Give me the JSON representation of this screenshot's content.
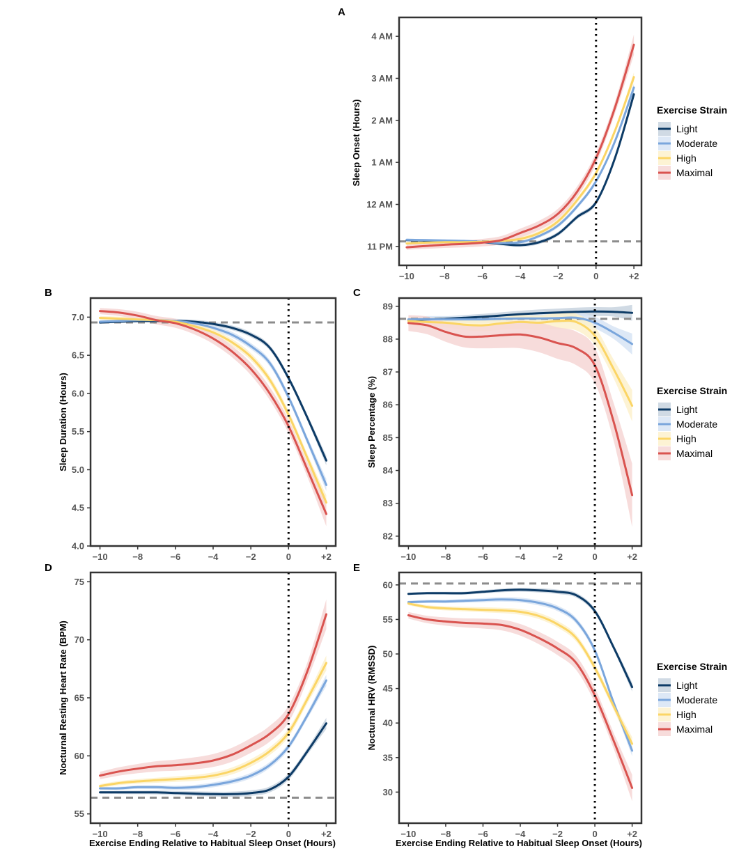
{
  "colors": {
    "Light": "#0d3b66",
    "Moderate": "#7aa6dc",
    "High": "#fbd565",
    "Maximal": "#d9534f",
    "band_Light": "#c8d3df",
    "band_Moderate": "#d7e4f4",
    "band_High": "#fdf1cc",
    "band_Maximal": "#f6d6d5",
    "reference": "#8c8c8c",
    "zero_line": "#000000"
  },
  "legend": {
    "title": "Exercise Strain",
    "items": [
      "Light",
      "Moderate",
      "High",
      "Maximal"
    ]
  },
  "chart_data": [
    {
      "panel": "A",
      "type": "line",
      "xlabel": "",
      "ylabel": "Sleep Onset (Hours)",
      "xlim": [
        -10.4,
        2.4
      ],
      "ylim": [
        -1.45,
        4.45
      ],
      "xticks": [
        -10,
        -8,
        -6,
        -4,
        -2,
        0,
        2
      ],
      "xtick_labels": [
        "−10",
        "−8",
        "−6",
        "−4",
        "−2",
        "0",
        "+2"
      ],
      "yticks": [
        -1,
        0,
        1,
        2,
        3,
        4
      ],
      "ytick_labels": [
        "11 PM",
        "12 AM",
        "1 AM",
        "2 AM",
        "3 AM",
        "4 AM"
      ],
      "reference_y": -0.88,
      "x": [
        -10,
        -9,
        -8,
        -7,
        -6,
        -5,
        -4,
        -3,
        -2,
        -1,
        0,
        1,
        2
      ],
      "series": [
        {
          "name": "Light",
          "values": [
            -0.85,
            -0.86,
            -0.87,
            -0.88,
            -0.9,
            -0.94,
            -0.97,
            -0.9,
            -0.7,
            -0.3,
            0.05,
            1.1,
            2.62
          ],
          "band": 0.06
        },
        {
          "name": "Moderate",
          "values": [
            -0.84,
            -0.85,
            -0.86,
            -0.87,
            -0.89,
            -0.92,
            -0.9,
            -0.75,
            -0.5,
            -0.05,
            0.55,
            1.5,
            2.78
          ],
          "band": 0.06
        },
        {
          "name": "High",
          "values": [
            -0.93,
            -0.91,
            -0.9,
            -0.9,
            -0.89,
            -0.87,
            -0.82,
            -0.68,
            -0.4,
            0.1,
            0.75,
            1.75,
            3.03
          ],
          "band": 0.07
        },
        {
          "name": "Maximal",
          "values": [
            -1.02,
            -0.99,
            -0.96,
            -0.94,
            -0.91,
            -0.85,
            -0.68,
            -0.5,
            -0.22,
            0.3,
            1.1,
            2.3,
            3.8
          ],
          "band": 0.15
        }
      ]
    },
    {
      "panel": "B",
      "type": "line",
      "xlabel": "",
      "ylabel": "Sleep Duration (Hours)",
      "xlim": [
        -10.5,
        2.5
      ],
      "ylim": [
        4.0,
        7.25
      ],
      "xticks": [
        -10,
        -8,
        -6,
        -4,
        -2,
        0,
        2
      ],
      "xtick_labels": [
        "−10",
        "−8",
        "−6",
        "−4",
        "−2",
        "0",
        "+2"
      ],
      "yticks": [
        4.0,
        4.5,
        5.0,
        5.5,
        6.0,
        6.5,
        7.0
      ],
      "ytick_labels": [
        "4.0",
        "4.5",
        "5.0",
        "5.5",
        "6.0",
        "6.5",
        "7.0"
      ],
      "reference_y": 6.93,
      "x": [
        -10,
        -9,
        -8,
        -7,
        -6,
        -5,
        -4,
        -3,
        -2,
        -1,
        0,
        1,
        2
      ],
      "series": [
        {
          "name": "Light",
          "values": [
            6.93,
            6.94,
            6.95,
            6.95,
            6.95,
            6.94,
            6.91,
            6.86,
            6.77,
            6.6,
            6.2,
            5.68,
            5.12
          ],
          "band": 0.04
        },
        {
          "name": "Moderate",
          "values": [
            6.94,
            6.95,
            6.96,
            6.96,
            6.95,
            6.92,
            6.86,
            6.77,
            6.62,
            6.4,
            5.95,
            5.38,
            4.8
          ],
          "band": 0.05
        },
        {
          "name": "High",
          "values": [
            6.99,
            6.98,
            6.97,
            6.96,
            6.94,
            6.88,
            6.8,
            6.67,
            6.48,
            6.18,
            5.72,
            5.15,
            4.57
          ],
          "band": 0.06
        },
        {
          "name": "Maximal",
          "values": [
            7.08,
            7.06,
            7.02,
            6.96,
            6.92,
            6.84,
            6.72,
            6.55,
            6.32,
            6.0,
            5.57,
            5.0,
            4.42
          ],
          "band": 0.1
        }
      ]
    },
    {
      "panel": "C",
      "type": "line",
      "xlabel": "",
      "ylabel": "Sleep Percentage (%)",
      "xlim": [
        -10.5,
        2.5
      ],
      "ylim": [
        81.7,
        89.25
      ],
      "xticks": [
        -10,
        -8,
        -6,
        -4,
        -2,
        0,
        2
      ],
      "xtick_labels": [
        "−10",
        "−8",
        "−6",
        "−4",
        "−2",
        "0",
        "+2"
      ],
      "yticks": [
        82,
        83,
        84,
        85,
        86,
        87,
        88,
        89
      ],
      "ytick_labels": [
        "82",
        "83",
        "84",
        "85",
        "86",
        "87",
        "88",
        "89"
      ],
      "reference_y": 88.62,
      "x": [
        -10,
        -9,
        -8,
        -7,
        -6,
        -5,
        -4,
        -3,
        -2,
        -1,
        0,
        1,
        2
      ],
      "series": [
        {
          "name": "Light",
          "values": [
            88.58,
            88.6,
            88.62,
            88.65,
            88.68,
            88.72,
            88.76,
            88.79,
            88.81,
            88.83,
            88.84,
            88.83,
            88.8
          ],
          "band": 0.15
        },
        {
          "name": "Moderate",
          "values": [
            88.6,
            88.61,
            88.6,
            88.6,
            88.6,
            88.62,
            88.63,
            88.63,
            88.64,
            88.65,
            88.5,
            88.2,
            87.85
          ],
          "band": 0.2
        },
        {
          "name": "High",
          "values": [
            88.55,
            88.52,
            88.5,
            88.44,
            88.42,
            88.48,
            88.52,
            88.5,
            88.55,
            88.52,
            88.1,
            87.1,
            85.97
          ],
          "band": 0.3
        },
        {
          "name": "Maximal",
          "values": [
            88.49,
            88.42,
            88.22,
            88.08,
            88.08,
            88.12,
            88.14,
            88.05,
            87.88,
            87.72,
            87.2,
            85.5,
            83.25
          ],
          "band": 0.6
        }
      ]
    },
    {
      "panel": "D",
      "type": "line",
      "xlabel": "Exercise Ending Relative to Habitual Sleep Onset (Hours)",
      "ylabel": "Nocturnal Resting Heart Rate (BPM)",
      "xlim": [
        -10.5,
        2.5
      ],
      "ylim": [
        54.2,
        75.8
      ],
      "xticks": [
        -10,
        -8,
        -6,
        -4,
        -2,
        0,
        2
      ],
      "xtick_labels": [
        "−10",
        "−8",
        "−6",
        "−4",
        "−2",
        "0",
        "+2"
      ],
      "yticks": [
        55,
        60,
        65,
        70,
        75
      ],
      "ytick_labels": [
        "55",
        "60",
        "65",
        "70",
        "75"
      ],
      "reference_y": 56.4,
      "x": [
        -10,
        -9,
        -8,
        -7,
        -6,
        -5,
        -4,
        -3,
        -2,
        -1,
        0,
        1,
        2
      ],
      "series": [
        {
          "name": "Light",
          "values": [
            56.85,
            56.85,
            56.85,
            56.85,
            56.8,
            56.75,
            56.7,
            56.7,
            56.8,
            57.1,
            58.2,
            60.4,
            62.8
          ],
          "band": 0.3
        },
        {
          "name": "Moderate",
          "values": [
            57.2,
            57.2,
            57.3,
            57.3,
            57.25,
            57.3,
            57.5,
            57.8,
            58.3,
            59.2,
            60.8,
            63.5,
            66.5
          ],
          "band": 0.3
        },
        {
          "name": "High",
          "values": [
            57.4,
            57.65,
            57.8,
            57.9,
            58.0,
            58.1,
            58.3,
            58.7,
            59.4,
            60.4,
            62.0,
            64.9,
            68.0
          ],
          "band": 0.4
        },
        {
          "name": "Maximal",
          "values": [
            58.3,
            58.65,
            58.9,
            59.1,
            59.2,
            59.35,
            59.6,
            60.1,
            60.9,
            61.9,
            63.6,
            67.3,
            72.2
          ],
          "band": 0.8
        }
      ]
    },
    {
      "panel": "E",
      "type": "line",
      "xlabel": "Exercise Ending Relative to Habitual Sleep Onset (Hours)",
      "ylabel": "Nocturnal HRV (RMSSD)",
      "xlim": [
        -10.5,
        2.5
      ],
      "ylim": [
        25.5,
        61.8
      ],
      "xticks": [
        -10,
        -8,
        -6,
        -4,
        -2,
        0,
        2
      ],
      "xtick_labels": [
        "−10",
        "−8",
        "−6",
        "−4",
        "−2",
        "0",
        "+2"
      ],
      "yticks": [
        30,
        35,
        40,
        45,
        50,
        55,
        60
      ],
      "ytick_labels": [
        "30",
        "35",
        "40",
        "45",
        "50",
        "55",
        "60"
      ],
      "reference_y": 60.2,
      "x": [
        -10,
        -9,
        -8,
        -7,
        -6,
        -5,
        -4,
        -3,
        -2,
        -1,
        0,
        1,
        2
      ],
      "series": [
        {
          "name": "Light",
          "values": [
            58.7,
            58.8,
            58.8,
            58.8,
            59.0,
            59.2,
            59.3,
            59.2,
            59.0,
            58.5,
            56.2,
            51.0,
            45.2
          ],
          "band": 0.4
        },
        {
          "name": "Moderate",
          "values": [
            57.5,
            57.6,
            57.6,
            57.7,
            57.8,
            57.9,
            57.8,
            57.4,
            56.6,
            54.8,
            50.5,
            43.0,
            36.0
          ],
          "band": 0.5
        },
        {
          "name": "High",
          "values": [
            57.3,
            56.8,
            56.6,
            56.5,
            56.4,
            56.3,
            56.1,
            55.5,
            54.3,
            52.3,
            48.0,
            42.5,
            37.0
          ],
          "band": 0.6
        },
        {
          "name": "Maximal",
          "values": [
            55.6,
            55.0,
            54.7,
            54.5,
            54.4,
            54.2,
            53.5,
            52.3,
            50.8,
            48.7,
            44.0,
            37.5,
            30.6
          ],
          "band": 1.2
        }
      ]
    }
  ],
  "panels_text": {
    "A": {
      "letter": "A",
      "ylabel": "Sleep Onset (Hours)"
    },
    "B": {
      "letter": "B",
      "ylabel": "Sleep Duration (Hours)"
    },
    "C": {
      "letter": "C",
      "ylabel": "Sleep Percentage (%)"
    },
    "D": {
      "letter": "D",
      "ylabel": "Nocturnal Resting Heart Rate (BPM)",
      "xlabel": "Exercise Ending Relative to Habitual Sleep Onset (Hours)"
    },
    "E": {
      "letter": "E",
      "ylabel": "Nocturnal HRV (RMSSD)",
      "xlabel": "Exercise Ending Relative to Habitual Sleep Onset (Hours)"
    }
  }
}
